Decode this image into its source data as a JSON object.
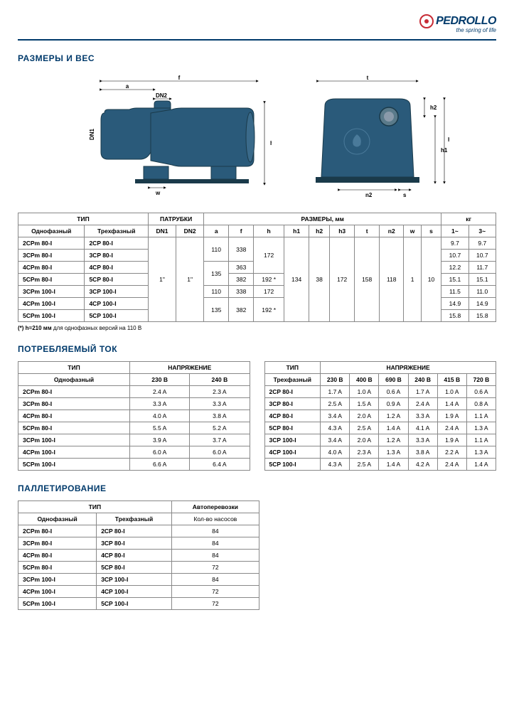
{
  "brand": {
    "name": "PEDROLLO",
    "tagline": "the spring of life"
  },
  "sections": {
    "dimensions": "РАЗМЕРЫ И ВЕС",
    "current": "ПОТРЕБЛЯЕМЫЙ ТОК",
    "pallet": "ПАЛЛЕТИРОВАНИЕ"
  },
  "colors": {
    "brand_blue": "#003a6b",
    "brand_red": "#c72b35",
    "pump_body": "#2a5a7a",
    "pump_stroke": "#1a3a4a",
    "text": "#000000",
    "border": "#888888"
  },
  "diagram_labels": {
    "a": "a",
    "f": "f",
    "h": "h",
    "h1": "h1",
    "h2": "h2",
    "h3": "h3",
    "t": "t",
    "n2": "n2",
    "w": "w",
    "s": "s",
    "DN1": "DN1",
    "DN2": "DN2"
  },
  "dim_table": {
    "headers": {
      "type": "ТИП",
      "ports": "ПАТРУБКИ",
      "dims": "РАЗМЕРЫ, мм",
      "kg": "кг",
      "single": "Однофазный",
      "three": "Трехфазный",
      "dn1": "DN1",
      "dn2": "DN2",
      "cols": [
        "a",
        "f",
        "h",
        "h1",
        "h2",
        "h3",
        "t",
        "n2",
        "w",
        "s",
        "1~",
        "3~"
      ]
    },
    "rows": [
      {
        "s": "2CPm 80-I",
        "t": "2CP 80-I",
        "kg1": "9.7",
        "kg3": "9.7"
      },
      {
        "s": "3CPm 80-I",
        "t": "3CP 80-I",
        "kg1": "10.7",
        "kg3": "10.7"
      },
      {
        "s": "4CPm 80-I",
        "t": "4CP 80-I",
        "kg1": "12.2",
        "kg3": "11.7"
      },
      {
        "s": "5CPm 80-I",
        "t": "5CP 80-I",
        "kg1": "15.1",
        "kg3": "15.1"
      },
      {
        "s": "3CPm 100-I",
        "t": "3CP 100-I",
        "kg1": "11.5",
        "kg3": "11.0"
      },
      {
        "s": "4CPm 100-I",
        "t": "4CP 100-I",
        "kg1": "14.9",
        "kg3": "14.9"
      },
      {
        "s": "5CPm 100-I",
        "t": "5CP 100-I",
        "kg1": "15.8",
        "kg3": "15.8"
      }
    ],
    "merged": {
      "dn1": "1\"",
      "dn2": "1\"",
      "a": [
        "110",
        "135",
        "110",
        "135"
      ],
      "f": [
        "338",
        "363",
        "382",
        "338",
        "382"
      ],
      "h": [
        "172",
        "192 *",
        "172",
        "192 *"
      ],
      "h1": "134",
      "h2": "38",
      "h3": "172",
      "t": "158",
      "n2": "118",
      "w": "1",
      "s": "10"
    },
    "footnote_bold": "(*) h=210 мм",
    "footnote_rest": " для однофазных версий на 110 В"
  },
  "current_single": {
    "headers": {
      "type": "ТИП",
      "voltage": "НАПРЯЖЕНИЕ",
      "single": "Однофазный",
      "v": [
        "230 В",
        "240 В"
      ]
    },
    "rows": [
      {
        "m": "2CPm 80-I",
        "v": [
          "2.4 A",
          "2.3 A"
        ]
      },
      {
        "m": "3CPm 80-I",
        "v": [
          "3.3 A",
          "3.3 A"
        ]
      },
      {
        "m": "4CPm 80-I",
        "v": [
          "4.0 A",
          "3.8 A"
        ]
      },
      {
        "m": "5CPm 80-I",
        "v": [
          "5.5 A",
          "5.2 A"
        ]
      },
      {
        "m": "3CPm 100-I",
        "v": [
          "3.9 A",
          "3.7 A"
        ]
      },
      {
        "m": "4CPm 100-I",
        "v": [
          "6.0 A",
          "6.0 A"
        ]
      },
      {
        "m": "5CPm 100-I",
        "v": [
          "6.6 A",
          "6.4 A"
        ]
      }
    ]
  },
  "current_three": {
    "headers": {
      "type": "ТИП",
      "voltage": "НАПРЯЖЕНИЕ",
      "three": "Трехфазный",
      "v": [
        "230 В",
        "400 В",
        "690 В",
        "240 В",
        "415 В",
        "720 В"
      ]
    },
    "rows": [
      {
        "m": "2CP 80-I",
        "v": [
          "1.7 A",
          "1.0 A",
          "0.6 A",
          "1.7 A",
          "1.0 A",
          "0.6 A"
        ]
      },
      {
        "m": "3CP 80-I",
        "v": [
          "2.5 A",
          "1.5 A",
          "0.9 A",
          "2.4 A",
          "1.4 A",
          "0.8 A"
        ]
      },
      {
        "m": "4CP 80-I",
        "v": [
          "3.4 A",
          "2.0 A",
          "1.2 A",
          "3.3 A",
          "1.9 A",
          "1.1 A"
        ]
      },
      {
        "m": "5CP 80-I",
        "v": [
          "4.3 A",
          "2.5 A",
          "1.4 A",
          "4.1 A",
          "2.4 A",
          "1.3 A"
        ]
      },
      {
        "m": "3CP 100-I",
        "v": [
          "3.4 A",
          "2.0 A",
          "1.2 A",
          "3.3 A",
          "1.9 A",
          "1.1 A"
        ]
      },
      {
        "m": "4CP 100-I",
        "v": [
          "4.0 A",
          "2.3 A",
          "1.3 A",
          "3.8 A",
          "2.2 A",
          "1.3 A"
        ]
      },
      {
        "m": "5CP 100-I",
        "v": [
          "4.3 A",
          "2.5 A",
          "1.4 A",
          "4.2 A",
          "2.4 A",
          "1.4 A"
        ]
      }
    ]
  },
  "pallet": {
    "headers": {
      "type": "ТИП",
      "auto": "Автоперевозки",
      "single": "Однофазный",
      "three": "Трехфазный",
      "qty": "Кол-во насосов"
    },
    "rows": [
      {
        "s": "2CPm 80-I",
        "t": "2CP 80-I",
        "q": "84"
      },
      {
        "s": "3CPm 80-I",
        "t": "3CP 80-I",
        "q": "84"
      },
      {
        "s": "4CPm 80-I",
        "t": "4CP 80-I",
        "q": "84"
      },
      {
        "s": "5CPm 80-I",
        "t": "5CP 80-I",
        "q": "72"
      },
      {
        "s": "3CPm 100-I",
        "t": "3CP 100-I",
        "q": "84"
      },
      {
        "s": "4CPm 100-I",
        "t": "4CP 100-I",
        "q": "72"
      },
      {
        "s": "5CPm 100-I",
        "t": "5CP 100-I",
        "q": "72"
      }
    ]
  }
}
